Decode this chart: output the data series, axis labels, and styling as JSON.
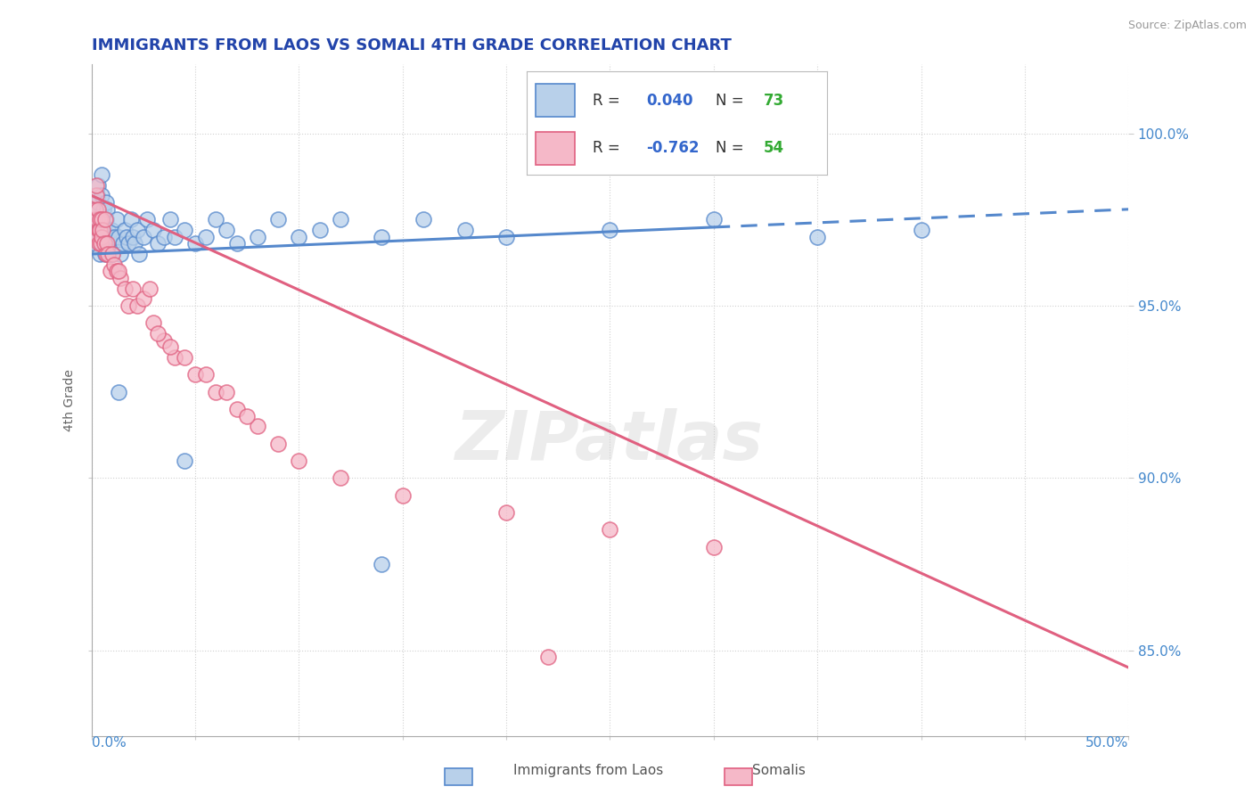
{
  "title": "IMMIGRANTS FROM LAOS VS SOMALI 4TH GRADE CORRELATION CHART",
  "source": "Source: ZipAtlas.com",
  "ylabel": "4th Grade",
  "xmin": 0.0,
  "xmax": 50.0,
  "ymin": 82.5,
  "ymax": 102.0,
  "yticks": [
    85.0,
    90.0,
    95.0,
    100.0
  ],
  "ytick_labels": [
    "85.0%",
    "90.0%",
    "95.0%",
    "100.0%"
  ],
  "r_blue": 0.04,
  "n_blue": 73,
  "r_pink": -0.762,
  "n_pink": 54,
  "blue_color": "#b8d0ea",
  "pink_color": "#f5b8c8",
  "blue_line_color": "#5588cc",
  "pink_line_color": "#e06080",
  "legend_r_color": "#3366cc",
  "legend_n_color": "#33aa33",
  "title_color": "#2244aa",
  "axis_label_color": "#4488cc",
  "watermark": "ZIPatlas",
  "blue_scatter_x": [
    0.15,
    0.18,
    0.2,
    0.22,
    0.25,
    0.28,
    0.3,
    0.33,
    0.35,
    0.38,
    0.4,
    0.42,
    0.45,
    0.48,
    0.5,
    0.52,
    0.55,
    0.58,
    0.6,
    0.62,
    0.65,
    0.68,
    0.7,
    0.72,
    0.75,
    0.78,
    0.8,
    0.85,
    0.9,
    0.95,
    1.0,
    1.1,
    1.2,
    1.3,
    1.4,
    1.5,
    1.6,
    1.7,
    1.8,
    1.9,
    2.0,
    2.1,
    2.2,
    2.3,
    2.5,
    2.7,
    3.0,
    3.2,
    3.5,
    3.8,
    4.0,
    4.5,
    5.0,
    5.5,
    6.0,
    6.5,
    7.0,
    8.0,
    9.0,
    10.0,
    11.0,
    12.0,
    14.0,
    16.0,
    18.0,
    20.0,
    25.0,
    30.0,
    35.0,
    40.0,
    1.3,
    4.5,
    14.0
  ],
  "blue_scatter_y": [
    96.8,
    97.2,
    97.5,
    98.0,
    97.8,
    98.2,
    98.5,
    98.0,
    97.5,
    97.2,
    96.5,
    97.0,
    97.5,
    98.2,
    98.8,
    97.0,
    97.5,
    97.8,
    96.8,
    97.2,
    96.5,
    97.0,
    97.5,
    98.0,
    97.8,
    97.2,
    96.8,
    97.0,
    96.5,
    97.2,
    96.5,
    97.0,
    97.5,
    97.0,
    96.5,
    96.8,
    97.2,
    97.0,
    96.8,
    97.5,
    97.0,
    96.8,
    97.2,
    96.5,
    97.0,
    97.5,
    97.2,
    96.8,
    97.0,
    97.5,
    97.0,
    97.2,
    96.8,
    97.0,
    97.5,
    97.2,
    96.8,
    97.0,
    97.5,
    97.0,
    97.2,
    97.5,
    97.0,
    97.5,
    97.2,
    97.0,
    97.2,
    97.5,
    97.0,
    97.2,
    92.5,
    90.5,
    87.5
  ],
  "pink_scatter_x": [
    0.15,
    0.18,
    0.2,
    0.22,
    0.25,
    0.28,
    0.3,
    0.33,
    0.35,
    0.38,
    0.4,
    0.42,
    0.45,
    0.48,
    0.5,
    0.55,
    0.6,
    0.65,
    0.7,
    0.75,
    0.8,
    0.9,
    1.0,
    1.1,
    1.2,
    1.4,
    1.6,
    1.8,
    2.0,
    2.2,
    2.5,
    3.0,
    3.5,
    4.0,
    5.0,
    6.0,
    7.0,
    8.0,
    10.0,
    12.0,
    15.0,
    20.0,
    25.0,
    30.0,
    1.3,
    2.8,
    4.5,
    3.8,
    5.5,
    7.5,
    3.2,
    6.5,
    9.0,
    22.0
  ],
  "pink_scatter_y": [
    97.5,
    97.0,
    97.8,
    98.2,
    98.5,
    97.5,
    97.0,
    97.8,
    97.2,
    96.8,
    97.5,
    97.2,
    96.8,
    97.5,
    97.0,
    97.2,
    96.8,
    97.5,
    96.5,
    96.8,
    96.5,
    96.0,
    96.5,
    96.2,
    96.0,
    95.8,
    95.5,
    95.0,
    95.5,
    95.0,
    95.2,
    94.5,
    94.0,
    93.5,
    93.0,
    92.5,
    92.0,
    91.5,
    90.5,
    90.0,
    89.5,
    89.0,
    88.5,
    88.0,
    96.0,
    95.5,
    93.5,
    93.8,
    93.0,
    91.8,
    94.2,
    92.5,
    91.0,
    84.8
  ],
  "blue_trend_y0": 96.5,
  "blue_trend_y50": 97.8,
  "blue_solid_xmax": 30.0,
  "pink_trend_y0": 98.2,
  "pink_trend_y50": 84.5
}
